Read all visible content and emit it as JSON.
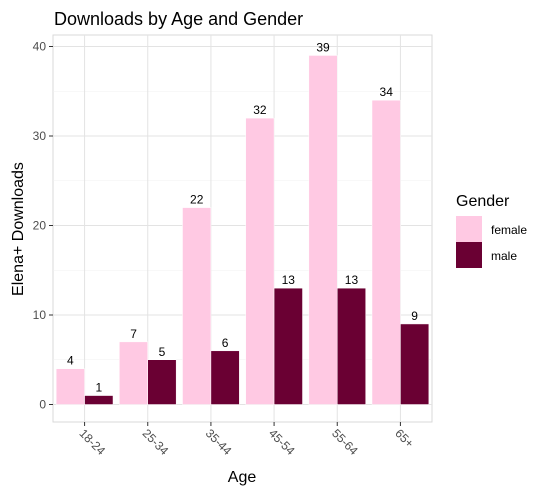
{
  "chart_data": {
    "type": "bar",
    "title": "Downloads by Age and Gender",
    "xlabel": "Age",
    "ylabel": "Elena+ Downloads",
    "categories": [
      "18-24",
      "25-34",
      "35-44",
      "45-54",
      "55-64",
      "65+"
    ],
    "series": [
      {
        "name": "female",
        "color": "#ffc9e3",
        "values": [
          4,
          7,
          22,
          32,
          39,
          34
        ]
      },
      {
        "name": "male",
        "color": "#6a0033",
        "values": [
          1,
          5,
          6,
          13,
          13,
          9
        ]
      }
    ],
    "ylim": [
      0,
      40
    ],
    "yticks": [
      0,
      10,
      20,
      30,
      40
    ],
    "grid": true,
    "legend": {
      "title": "Gender",
      "position": "right"
    }
  }
}
